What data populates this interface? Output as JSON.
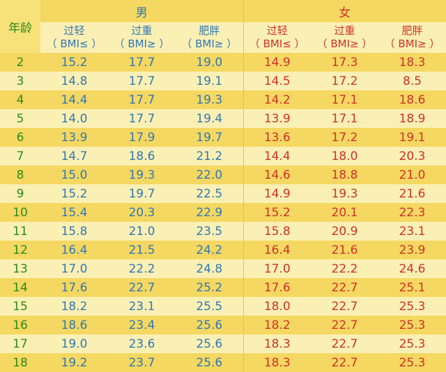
{
  "header": {
    "age_label": "年龄",
    "male_label": "男",
    "female_label": "女",
    "columns": [
      {
        "line1": "过轻",
        "line2": "（ BMI≤ ）"
      },
      {
        "line1": "过重",
        "line2": "（ BMI≥ ）"
      },
      {
        "line1": "肥胖",
        "line2": "（ BMI≥ ）"
      },
      {
        "line1": "过轻",
        "line2": "（ BMI≤ ）"
      },
      {
        "line1": "过重",
        "line2": "（ BMI≥ ）"
      },
      {
        "line1": "肥胖",
        "line2": "（ BMI≥ ）"
      }
    ]
  },
  "rows": [
    {
      "age": "2",
      "m": [
        "15.2",
        "17.7",
        "19.0"
      ],
      "f": [
        "14.9",
        "17.3",
        "18.3"
      ]
    },
    {
      "age": "3",
      "m": [
        "14.8",
        "17.7",
        "19.1"
      ],
      "f": [
        "14.5",
        "17.2",
        "8.5"
      ]
    },
    {
      "age": "4",
      "m": [
        "14.4",
        "17.7",
        "19.3"
      ],
      "f": [
        "14.2",
        "17.1",
        "18.6"
      ]
    },
    {
      "age": "5",
      "m": [
        "14.0",
        "17.7",
        "19.4"
      ],
      "f": [
        "13.9",
        "17.1",
        "18.9"
      ]
    },
    {
      "age": "6",
      "m": [
        "13.9",
        "17.9",
        "19.7"
      ],
      "f": [
        "13.6",
        "17.2",
        "19.1"
      ]
    },
    {
      "age": "7",
      "m": [
        "14.7",
        "18.6",
        "21.2"
      ],
      "f": [
        "14.4",
        "18.0",
        "20.3"
      ]
    },
    {
      "age": "8",
      "m": [
        "15.0",
        "19.3",
        "22.0"
      ],
      "f": [
        "14.6",
        "18.8",
        "21.0"
      ]
    },
    {
      "age": "9",
      "m": [
        "15.2",
        "19.7",
        "22.5"
      ],
      "f": [
        "14.9",
        "19.3",
        "21.6"
      ]
    },
    {
      "age": "10",
      "m": [
        "15.4",
        "20.3",
        "22.9"
      ],
      "f": [
        "15.2",
        "20.1",
        "22.3"
      ]
    },
    {
      "age": "11",
      "m": [
        "15.8",
        "21.0",
        "23.5"
      ],
      "f": [
        "15.8",
        "20.9",
        "23.1"
      ]
    },
    {
      "age": "12",
      "m": [
        "16.4",
        "21.5",
        "24.2"
      ],
      "f": [
        "16.4",
        "21.6",
        "23.9"
      ]
    },
    {
      "age": "13",
      "m": [
        "17.0",
        "22.2",
        "24.8"
      ],
      "f": [
        "17.0",
        "22.2",
        "24.6"
      ]
    },
    {
      "age": "14",
      "m": [
        "17.6",
        "22.7",
        "25.2"
      ],
      "f": [
        "17.6",
        "22.7",
        "25.1"
      ]
    },
    {
      "age": "15",
      "m": [
        "18.2",
        "23.1",
        "25.5"
      ],
      "f": [
        "18.0",
        "22.7",
        "25.3"
      ]
    },
    {
      "age": "16",
      "m": [
        "18.6",
        "23.4",
        "25.6"
      ],
      "f": [
        "18.2",
        "22.7",
        "25.3"
      ]
    },
    {
      "age": "17",
      "m": [
        "19.0",
        "23.6",
        "25.6"
      ],
      "f": [
        "18.3",
        "22.7",
        "25.3"
      ]
    },
    {
      "age": "18",
      "m": [
        "19.2",
        "23.7",
        "25.6"
      ],
      "f": [
        "18.3",
        "22.7",
        "25.3"
      ]
    }
  ],
  "colors": {
    "age_text": "#2e8a1c",
    "male_text": "#2f77b5",
    "female_text": "#d1302c",
    "row_light": "#fbf0b4",
    "row_dark": "#f5d861",
    "background": "#f7e27a"
  }
}
